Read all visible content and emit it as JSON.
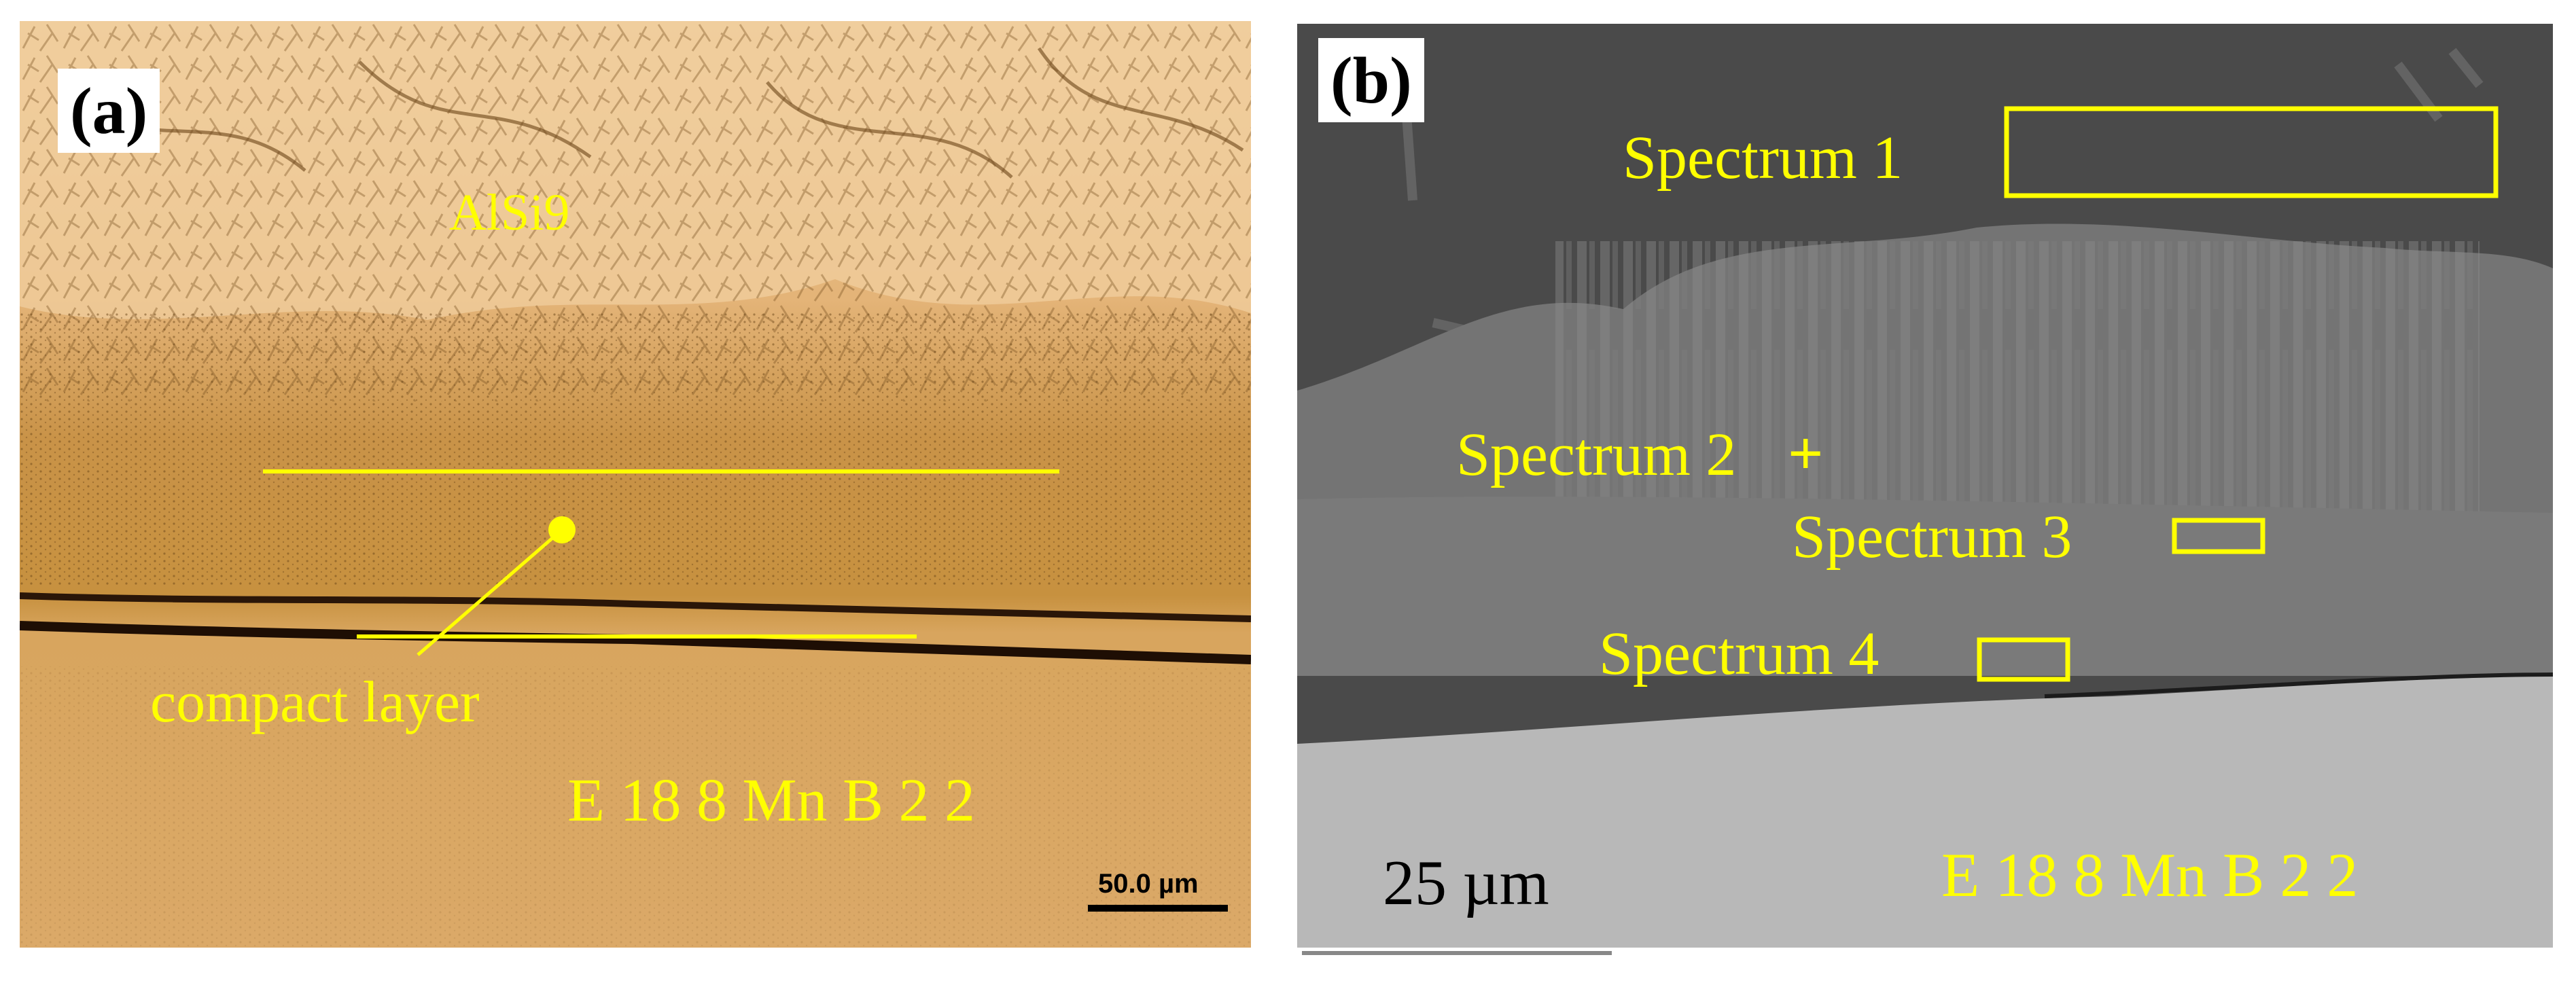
{
  "panel_a": {
    "label": "(a)",
    "matrix_label": "AlSi9",
    "layer_label": "compact layer",
    "substrate_label": "E 18 8 Mn B 2 2",
    "scale_text": "50.0 µm"
  },
  "panel_b": {
    "label": "(b)",
    "spectra": [
      {
        "label": "Spectrum 1",
        "marker": "rectangle"
      },
      {
        "label": "Spectrum 2",
        "marker": "+"
      },
      {
        "label": "Spectrum 3",
        "marker": "rectangle"
      },
      {
        "label": "Spectrum 4",
        "marker": "rectangle"
      }
    ],
    "substrate_label": "E 18 8 Mn B 2 2",
    "scale_text": "25 µm"
  },
  "colors": {
    "annotation": "#ffff00",
    "optical_base": "#d9a05a",
    "sem_dark": "#4a4a4a",
    "sem_light": "#b6b6b6"
  }
}
